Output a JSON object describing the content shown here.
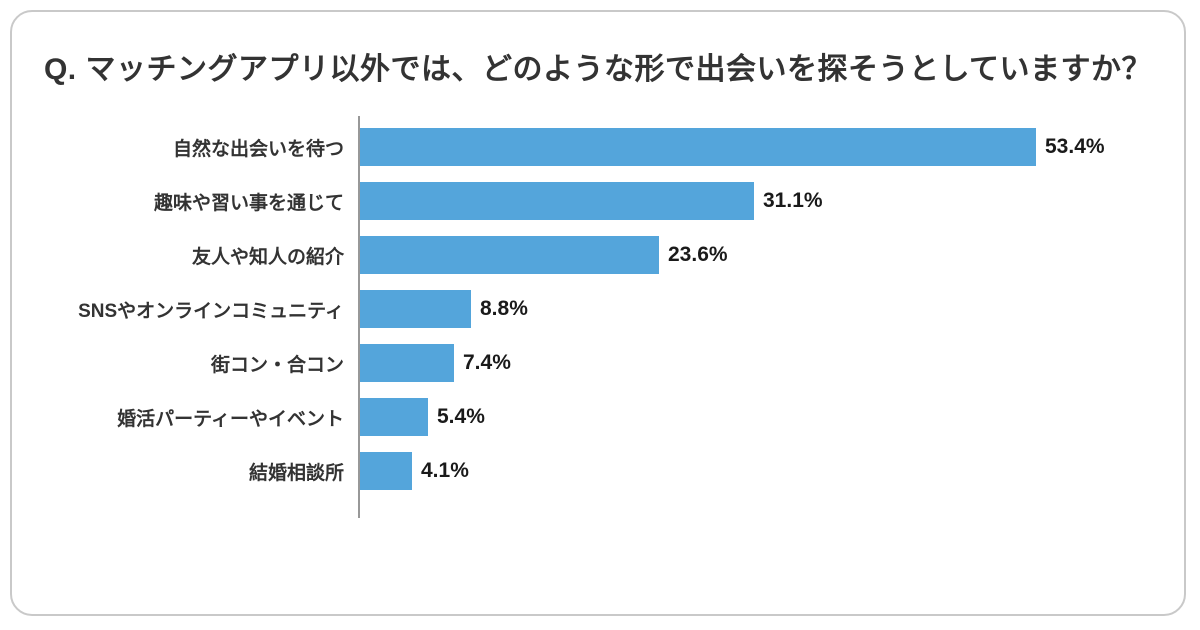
{
  "title": "Q. マッチングアプリ以外では、どのような形で出会いを探そうとしていますか？",
  "chart_data": {
    "type": "bar",
    "orientation": "horizontal",
    "title": "Q. マッチングアプリ以外では、どのような形で出会いを探そうとしていますか？",
    "categories": [
      "自然な出会いを待つ",
      "趣味や習い事を通じて",
      "友人や知人の紹介",
      "SNSやオンラインコミュニティ",
      "街コン・合コン",
      "婚活パーティーやイベント",
      "結婚相談所"
    ],
    "values": [
      53.4,
      31.1,
      23.6,
      8.8,
      7.4,
      5.4,
      4.1
    ],
    "value_labels": [
      "53.4%",
      "31.1%",
      "23.6%",
      "8.8%",
      "7.4%",
      "5.4%",
      "4.1%"
    ],
    "xlabel": "",
    "ylabel": "",
    "xlim": [
      0,
      56
    ],
    "grid": false,
    "legend": false,
    "bar_color": "#54A5DB"
  },
  "colors": {
    "bar": "#54A5DB",
    "card_border": "#c9c9c9",
    "axis": "#989898",
    "title_text": "#333333",
    "value_text": "#1a1a1a"
  }
}
